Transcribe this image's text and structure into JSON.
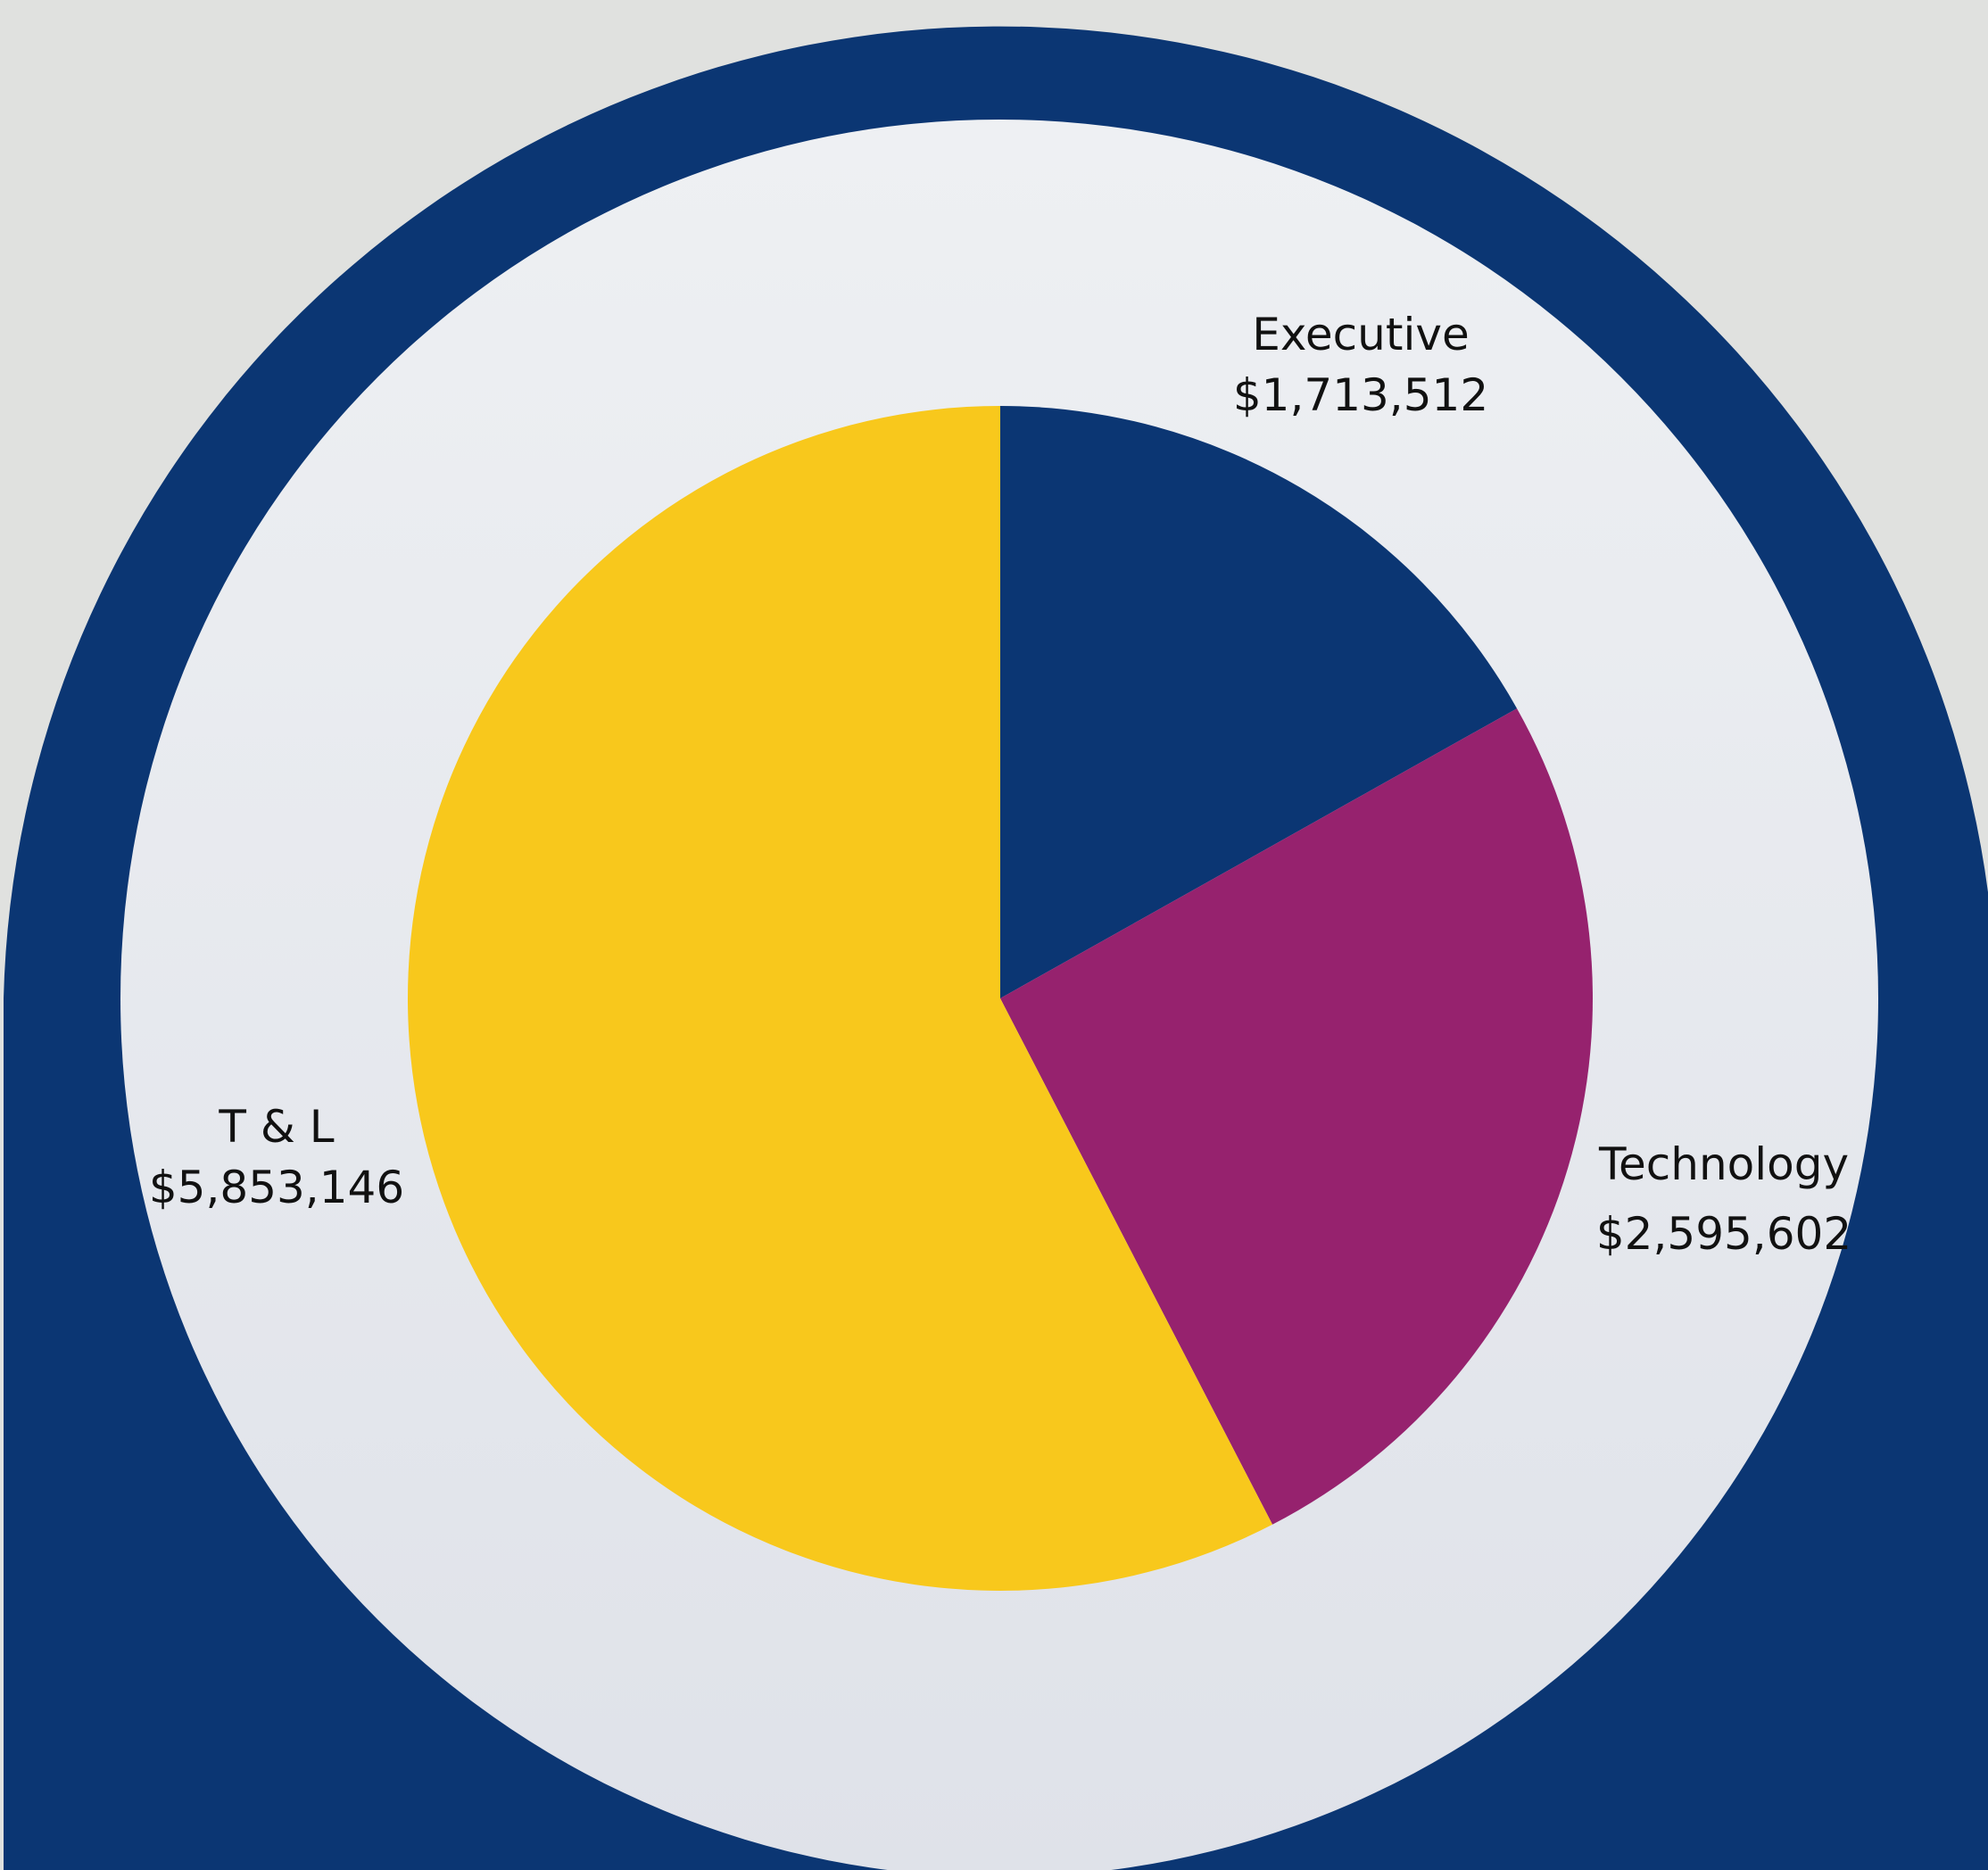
{
  "chart_data": {
    "type": "pie",
    "categories": [
      "Executive",
      "Technology",
      "T & L"
    ],
    "values": [
      1713512,
      2595602,
      5853146
    ],
    "value_labels": [
      "$1,713,512",
      "$2,595,602",
      "$5,853,146"
    ],
    "colors": [
      "#0b3673",
      "#96226e",
      "#f8c81c"
    ],
    "start_angle": "top",
    "direction": "clockwise",
    "legend": "none",
    "labels_placement": "outside slices"
  },
  "theme": {
    "page_background": "#e0e1df",
    "frame_color": "#0b3673",
    "ring_color": "#eaecf0"
  }
}
